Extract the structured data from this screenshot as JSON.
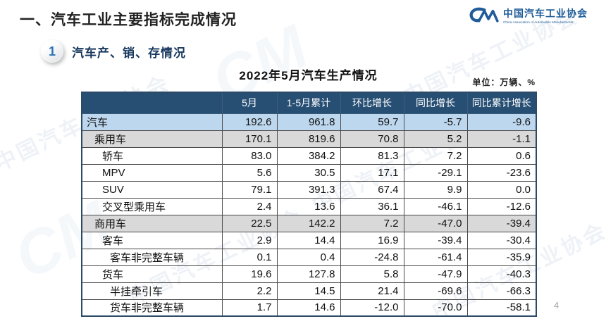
{
  "page": {
    "title": "一、汽车工业主要指标完成情况",
    "page_number": "4"
  },
  "logo": {
    "mark": "CM",
    "name_cn": "中国汽车工业协会",
    "name_en": "China Association of Automobile Manufacturers"
  },
  "section": {
    "badge": "1",
    "title": "汽车产、销、存情况"
  },
  "table": {
    "title": "2022年5月汽车生产情况",
    "unit": "单位：万辆、%",
    "columns": [
      "",
      "5月",
      "1-5月累计",
      "环比增长",
      "同比增长",
      "同比累计增长"
    ],
    "rows": [
      {
        "label": "汽车",
        "indent": 0,
        "style": "blue",
        "values": [
          "192.6",
          "961.8",
          "59.7",
          "-5.7",
          "-9.6"
        ]
      },
      {
        "label": "乘用车",
        "indent": 1,
        "style": "gray",
        "values": [
          "170.1",
          "819.6",
          "70.8",
          "5.2",
          "-1.1"
        ]
      },
      {
        "label": "轿车",
        "indent": 2,
        "style": "white",
        "values": [
          "83.0",
          "384.2",
          "81.3",
          "7.2",
          "0.6"
        ]
      },
      {
        "label": "MPV",
        "indent": 2,
        "style": "white",
        "values": [
          "5.6",
          "30.5",
          "17.1",
          "-29.1",
          "-23.6"
        ]
      },
      {
        "label": "SUV",
        "indent": 2,
        "style": "white",
        "values": [
          "79.1",
          "391.3",
          "67.4",
          "9.9",
          "0.0"
        ]
      },
      {
        "label": "交叉型乘用车",
        "indent": 2,
        "style": "white",
        "values": [
          "2.4",
          "13.6",
          "36.1",
          "-46.1",
          "-12.6"
        ]
      },
      {
        "label": "商用车",
        "indent": 1,
        "style": "gray",
        "values": [
          "22.5",
          "142.2",
          "7.2",
          "-47.0",
          "-39.4"
        ]
      },
      {
        "label": "客车",
        "indent": 2,
        "style": "white",
        "values": [
          "2.9",
          "14.4",
          "16.9",
          "-39.4",
          "-30.4"
        ]
      },
      {
        "label": "客车非完整车辆",
        "indent": 3,
        "style": "white",
        "values": [
          "0.1",
          "0.4",
          "-24.8",
          "-61.4",
          "-35.9"
        ]
      },
      {
        "label": "货车",
        "indent": 2,
        "style": "white",
        "values": [
          "19.6",
          "127.8",
          "5.8",
          "-47.9",
          "-40.3"
        ]
      },
      {
        "label": "半挂牵引车",
        "indent": 3,
        "style": "white",
        "values": [
          "2.2",
          "14.5",
          "21.4",
          "-69.6",
          "-66.3"
        ]
      },
      {
        "label": "货车非完整车辆",
        "indent": 3,
        "style": "white",
        "values": [
          "1.7",
          "14.6",
          "-12.0",
          "-70.0",
          "-58.1"
        ]
      }
    ]
  },
  "colors": {
    "header_bg": "#274F74",
    "highlight_row_bg": "#BDD7EE",
    "subtotal_row_bg": "#D9D9D9",
    "accent_blue": "#1F5C99",
    "badge_number": "#2E74B5",
    "section_title": "#17375E"
  },
  "chart_data": {
    "type": "table",
    "title": "2022年5月汽车生产情况",
    "unit": "万辆、%",
    "columns": [
      "5月",
      "1-5月累计",
      "环比增长",
      "同比增长",
      "同比累计增长"
    ],
    "rows": [
      {
        "category": "汽车",
        "values": [
          192.6,
          961.8,
          59.7,
          -5.7,
          -9.6
        ]
      },
      {
        "category": "乘用车",
        "values": [
          170.1,
          819.6,
          70.8,
          5.2,
          -1.1
        ]
      },
      {
        "category": "轿车",
        "values": [
          83.0,
          384.2,
          81.3,
          7.2,
          0.6
        ]
      },
      {
        "category": "MPV",
        "values": [
          5.6,
          30.5,
          17.1,
          -29.1,
          -23.6
        ]
      },
      {
        "category": "SUV",
        "values": [
          79.1,
          391.3,
          67.4,
          9.9,
          0.0
        ]
      },
      {
        "category": "交叉型乘用车",
        "values": [
          2.4,
          13.6,
          36.1,
          -46.1,
          -12.6
        ]
      },
      {
        "category": "商用车",
        "values": [
          22.5,
          142.2,
          7.2,
          -47.0,
          -39.4
        ]
      },
      {
        "category": "客车",
        "values": [
          2.9,
          14.4,
          16.9,
          -39.4,
          -30.4
        ]
      },
      {
        "category": "客车非完整车辆",
        "values": [
          0.1,
          0.4,
          -24.8,
          -61.4,
          -35.9
        ]
      },
      {
        "category": "货车",
        "values": [
          19.6,
          127.8,
          5.8,
          -47.9,
          -40.3
        ]
      },
      {
        "category": "半挂牵引车",
        "values": [
          2.2,
          14.5,
          21.4,
          -69.6,
          -66.3
        ]
      },
      {
        "category": "货车非完整车辆",
        "values": [
          1.7,
          14.6,
          -12.0,
          -70.0,
          -58.1
        ]
      }
    ]
  }
}
